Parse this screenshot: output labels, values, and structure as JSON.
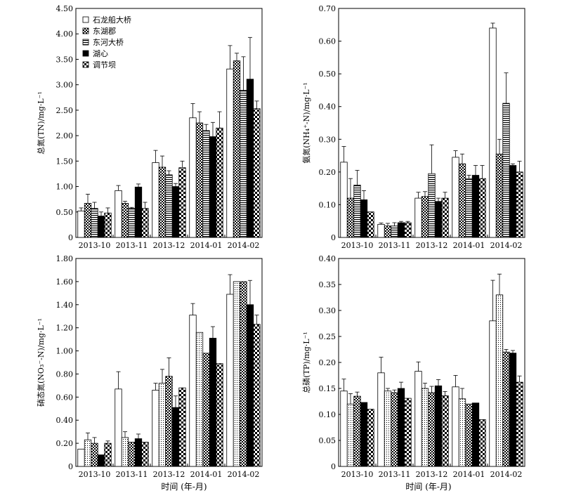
{
  "figure": {
    "x_axis_title": "时间 (年-月)"
  },
  "chart_data": [
    {
      "type": "bar",
      "id": "tn",
      "ylabel": "总氮(TN)/mg·L⁻¹",
      "ylim": [
        0,
        4.5
      ],
      "yticks": [
        "0",
        "0.50",
        "1.00",
        "1.50",
        "2.00",
        "2.50",
        "3.00",
        "3.50",
        "4.00",
        "4.50"
      ],
      "categories": [
        "2013-10",
        "2013-11",
        "2013-12",
        "2014-01",
        "2014-02"
      ],
      "legend": "top-left",
      "series": [
        {
          "name": "石龙船大桥",
          "pattern": "white",
          "values": [
            0.52,
            0.92,
            1.47,
            2.35,
            3.31
          ],
          "errors": [
            0.06,
            0.1,
            0.24,
            0.28,
            0.46
          ]
        },
        {
          "name": "东湖郡",
          "pattern": "checker",
          "values": [
            0.67,
            0.67,
            1.38,
            2.25,
            3.47
          ],
          "errors": [
            0.18,
            0.04,
            0.22,
            0.22,
            0.15
          ]
        },
        {
          "name": "东河大桥",
          "pattern": "hstripe",
          "values": [
            0.57,
            0.57,
            1.23,
            2.1,
            2.89
          ],
          "errors": [
            0.12,
            0.02,
            0.08,
            0.12,
            0.66
          ]
        },
        {
          "name": "湖心",
          "pattern": "black",
          "values": [
            0.42,
            0.99,
            1.0,
            1.98,
            3.11
          ],
          "errors": [
            0.08,
            0.06,
            0.06,
            0.28,
            0.82
          ]
        },
        {
          "name": "调节坝",
          "pattern": "check2",
          "values": [
            0.48,
            0.57,
            1.37,
            2.15,
            2.53
          ],
          "errors": [
            0.1,
            0.12,
            0.13,
            0.32,
            0.15
          ]
        }
      ]
    },
    {
      "type": "bar",
      "id": "nh4",
      "ylabel": "氨氮(NH₄⁺-N)/mg·L⁻¹",
      "ylim": [
        0,
        0.7
      ],
      "yticks": [
        "0",
        "0.10",
        "0.20",
        "0.30",
        "0.40",
        "0.50",
        "0.60",
        "0.70"
      ],
      "categories": [
        "2013-10",
        "2013-11",
        "2013-12",
        "2014-01",
        "2014-02"
      ],
      "series": [
        {
          "pattern": "white",
          "values": [
            0.23,
            0.04,
            0.12,
            0.245,
            0.64
          ],
          "errors": [
            0.048,
            0.004,
            0.018,
            0.02,
            0.015
          ]
        },
        {
          "pattern": "checker",
          "values": [
            0.12,
            0.035,
            0.125,
            0.225,
            0.255
          ],
          "errors": [
            0.06,
            0.008,
            0.015,
            0.03,
            0.045
          ]
        },
        {
          "pattern": "hstripe",
          "values": [
            0.16,
            0.035,
            0.195,
            0.18,
            0.41
          ],
          "errors": [
            0.045,
            0.01,
            0.088,
            0.01,
            0.093
          ]
        },
        {
          "pattern": "black",
          "values": [
            0.115,
            0.045,
            0.11,
            0.19,
            0.22
          ],
          "errors": [
            0.028,
            0.004,
            0.01,
            0.03,
            0.005
          ]
        },
        {
          "pattern": "check2",
          "values": [
            0.078,
            0.045,
            0.12,
            0.18,
            0.2
          ],
          "errors": [
            0.0,
            0.004,
            0.018,
            0.04,
            0.033
          ]
        }
      ]
    },
    {
      "type": "bar",
      "id": "no3",
      "ylabel": "硝态氮(NO₃⁻-N)/mg·L⁻¹",
      "ylim": [
        0,
        1.8
      ],
      "yticks": [
        "0",
        "0.20",
        "0.40",
        "0.60",
        "0.80",
        "1.00",
        "1.20",
        "1.40",
        "1.60",
        "1.80"
      ],
      "categories": [
        "2013-10",
        "2013-11",
        "2013-12",
        "2014-01",
        "2014-02"
      ],
      "series": [
        {
          "pattern": "white",
          "values": [
            0.15,
            0.67,
            0.66,
            1.31,
            1.49
          ],
          "errors": [
            0.0,
            0.15,
            0.06,
            0.1,
            0.17
          ]
        },
        {
          "pattern": "dots",
          "values": [
            0.23,
            0.25,
            0.72,
            1.16,
            1.6
          ],
          "errors": [
            0.06,
            0.05,
            0.12,
            0.0,
            0.0
          ]
        },
        {
          "pattern": "checker",
          "values": [
            0.2,
            0.21,
            0.78,
            0.98,
            1.6
          ],
          "errors": [
            0.05,
            0.0,
            0.16,
            0.0,
            0.0
          ]
        },
        {
          "pattern": "black",
          "values": [
            0.1,
            0.24,
            0.51,
            1.11,
            1.4
          ],
          "errors": [
            0.0,
            0.04,
            0.1,
            0.1,
            0.21
          ]
        },
        {
          "pattern": "check2",
          "values": [
            0.2,
            0.21,
            0.68,
            0.89,
            1.23
          ],
          "errors": [
            0.02,
            0.0,
            0.0,
            0.0,
            0.08
          ]
        }
      ]
    },
    {
      "type": "bar",
      "id": "tp",
      "ylabel": "总磷(TP)/mg·L⁻¹",
      "ylim": [
        0,
        0.4
      ],
      "yticks": [
        "0",
        "0.05",
        "0.10",
        "0.15",
        "0.20",
        "0.25",
        "0.30",
        "0.35",
        "0.40"
      ],
      "categories": [
        "2013-10",
        "2013-11",
        "2013-12",
        "2014-01",
        "2014-02"
      ],
      "series": [
        {
          "pattern": "white",
          "values": [
            0.145,
            0.18,
            0.183,
            0.153,
            0.28
          ],
          "errors": [
            0.023,
            0.03,
            0.018,
            0.022,
            0.078
          ]
        },
        {
          "pattern": "dots",
          "values": [
            0.12,
            0.145,
            0.15,
            0.13,
            0.33
          ],
          "errors": [
            0.02,
            0.005,
            0.01,
            0.02,
            0.04
          ]
        },
        {
          "pattern": "checker",
          "values": [
            0.135,
            0.142,
            0.142,
            0.12,
            0.22
          ],
          "errors": [
            0.008,
            0.005,
            0.012,
            0.0,
            0.005
          ]
        },
        {
          "pattern": "black",
          "values": [
            0.123,
            0.15,
            0.155,
            0.122,
            0.218
          ],
          "errors": [
            0.0,
            0.012,
            0.012,
            0.0,
            0.005
          ]
        },
        {
          "pattern": "check2",
          "values": [
            0.11,
            0.131,
            0.136,
            0.09,
            0.162
          ],
          "errors": [
            0.0,
            0.0,
            0.008,
            0.0,
            0.012
          ]
        }
      ]
    }
  ]
}
